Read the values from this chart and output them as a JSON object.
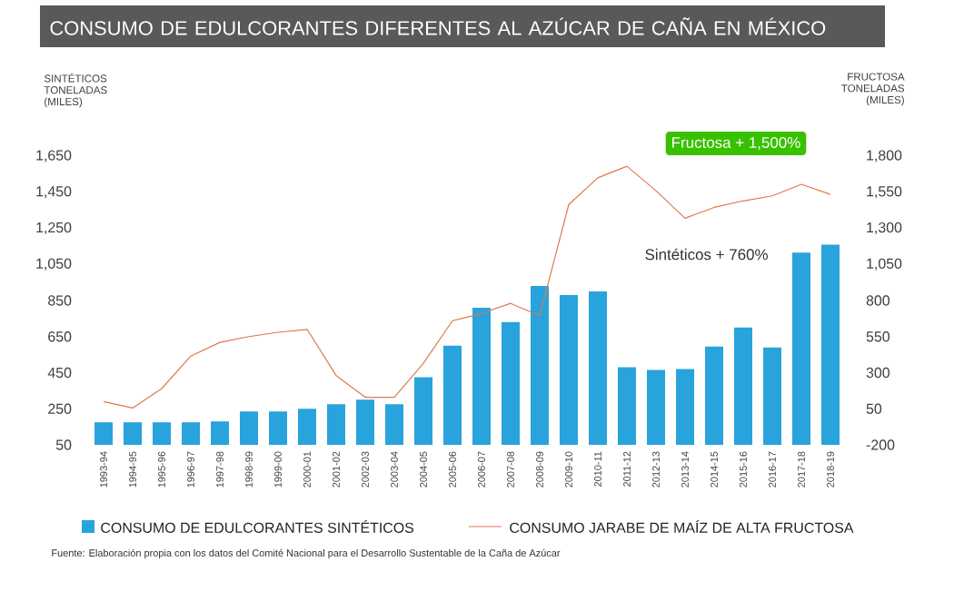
{
  "chart_data": {
    "type": "bar",
    "title": "CONSUMO DE EDULCORANTES DIFERENTES AL AZÚCAR DE CAÑA EN MÉXICO",
    "ylabel": "SINTÉTICOS TONELADAS (MILES)",
    "y2label": "FRUCTOSA TONELADAS (MILES)",
    "categories": [
      "1993-94",
      "1994-95",
      "1995-96",
      "1996-97",
      "1997-98",
      "1998-99",
      "1999-00",
      "2000-01",
      "2001-02",
      "2002-03",
      "2003-04",
      "2004-05",
      "2005-06",
      "2006-07",
      "2007-08",
      "2008-09",
      "2009-10",
      "2010-11",
      "2011-12",
      "2012-13",
      "2013-14",
      "2014-15",
      "2015-16",
      "2016-17",
      "2017-18",
      "2018-19"
    ],
    "series": [
      {
        "name": "CONSUMO DE EDULCORANTES SINTÉTICOS",
        "color": "#29a3dc",
        "values": [
          175,
          175,
          175,
          175,
          180,
          235,
          235,
          250,
          275,
          300,
          275,
          425,
          600,
          810,
          730,
          930,
          880,
          900,
          480,
          465,
          470,
          595,
          700,
          590,
          1115,
          1160
        ]
      },
      {
        "name": "CONSUMO JARABE DE MAÍZ DE ALTA FRUCTOSA",
        "type": "line",
        "axis": "y2",
        "color": "#e07850",
        "values": [
          100,
          55,
          190,
          415,
          510,
          550,
          580,
          600,
          280,
          130,
          130,
          365,
          660,
          710,
          780,
          695,
          1465,
          1650,
          1730,
          1560,
          1370,
          1445,
          1490,
          1525,
          1605,
          1535
        ]
      }
    ],
    "ylim": [
      50,
      1650
    ],
    "yticks": [
      50,
      250,
      450,
      650,
      850,
      {
        "value": 1050,
        "label": "1,050"
      },
      {
        "value": 1250,
        "label": "1,250"
      },
      {
        "value": 1450,
        "label": "1,450"
      },
      {
        "value": 1650,
        "label": "1,650"
      }
    ],
    "y2lim": [
      -200,
      1800
    ],
    "y2ticks": [
      -200,
      50,
      300,
      550,
      800,
      {
        "value": 1050,
        "label": "1,050"
      },
      {
        "value": 1300,
        "label": "1,300"
      },
      {
        "value": 1550,
        "label": "1,550"
      },
      {
        "value": 1800,
        "label": "1,800"
      }
    ],
    "legend": "bottom",
    "annotations": [
      "Fructosa + 1,500%",
      "Sintéticos + 760%",
      "Fuente: Elaboración propia con los datos del Comité Nacional para el Desarrollo Sustentable de la Caña de Azúcar"
    ]
  }
}
